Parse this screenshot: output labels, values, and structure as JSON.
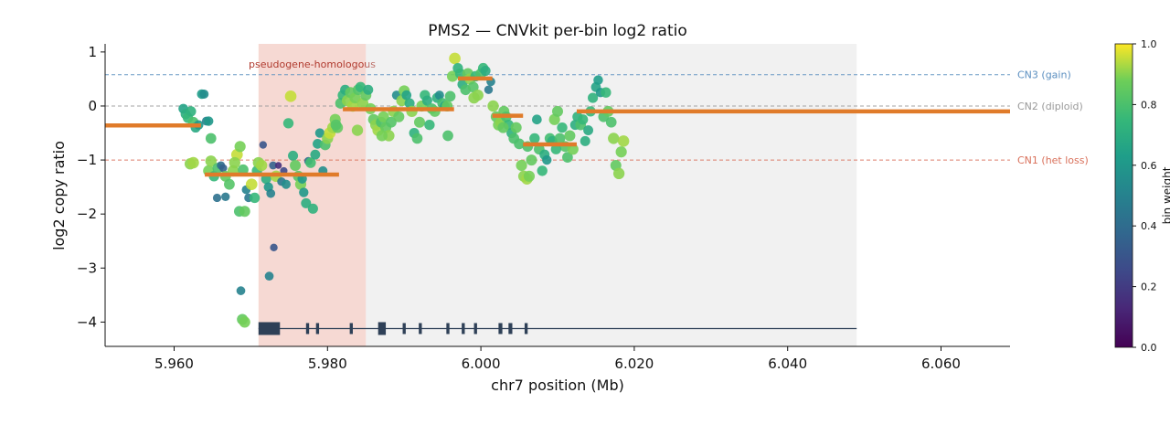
{
  "chart_data": {
    "type": "scatter",
    "title": "PMS2 — CNVkit per-bin log2 ratio",
    "xlabel": "chr7 position (Mb)",
    "ylabel": "log2 copy ratio",
    "xlim": [
      5.951,
      6.069
    ],
    "ylim": [
      -4.45,
      1.15
    ],
    "x_ticks": [
      5.96,
      5.98,
      6.0,
      6.02,
      6.04,
      6.06
    ],
    "x_tick_labels": [
      "5.960",
      "5.980",
      "6.000",
      "6.020",
      "6.040",
      "6.060"
    ],
    "y_ticks": [
      1,
      0,
      -1,
      -2,
      -3,
      -4
    ],
    "y_tick_labels": [
      "1",
      "0",
      "−1",
      "−2",
      "−3",
      "−4"
    ],
    "colormap": "viridis",
    "colorbar": {
      "label": "bin weight",
      "range": [
        0.0,
        1.0
      ],
      "ticks": [
        0.0,
        0.2,
        0.4,
        0.6,
        0.8,
        1.0
      ],
      "tick_labels": [
        "0.0",
        "0.2",
        "0.4",
        "0.6",
        "0.8",
        "1.0"
      ]
    },
    "reference_lines": [
      {
        "y": 0.58,
        "label": "CN3 (gain)",
        "color": "#5b8fc0"
      },
      {
        "y": 0.0,
        "label": "CN2 (diploid)",
        "color": "#999999"
      },
      {
        "y": -1.0,
        "label": "CN1 (het loss)",
        "color": "#d9705a"
      }
    ],
    "regions": [
      {
        "x0": 5.971,
        "x1": 5.985,
        "label": "pseudogene-homologous",
        "color": "#e8a090",
        "opacity": 0.4
      },
      {
        "x0": 5.985,
        "x1": 6.049,
        "label": "",
        "color": "#d8d8d8",
        "opacity": 0.35
      }
    ],
    "segments_color": "#e07b2a",
    "segments": [
      {
        "x0": 5.951,
        "x1": 5.9635,
        "y": -0.36
      },
      {
        "x0": 5.964,
        "x1": 5.9815,
        "y": -1.27
      },
      {
        "x0": 5.982,
        "x1": 5.9965,
        "y": -0.06
      },
      {
        "x0": 5.997,
        "x1": 6.0015,
        "y": 0.51
      },
      {
        "x0": 6.0015,
        "x1": 6.0055,
        "y": -0.18
      },
      {
        "x0": 6.0055,
        "x1": 6.0125,
        "y": -0.71
      },
      {
        "x0": 6.0125,
        "x1": 6.069,
        "y": -0.1
      }
    ],
    "gene_track": {
      "y": -4.12,
      "x0": 5.971,
      "x1": 6.049,
      "color": "#2e4057",
      "exons": [
        {
          "x0": 5.971,
          "x1": 5.9738
        },
        {
          "x0": 5.9772,
          "x1": 5.9776
        },
        {
          "x0": 5.9785,
          "x1": 5.9789
        },
        {
          "x0": 5.9829,
          "x1": 5.9833
        },
        {
          "x0": 5.9866,
          "x1": 5.9876
        },
        {
          "x0": 5.9898,
          "x1": 5.9902
        },
        {
          "x0": 5.9919,
          "x1": 5.9923
        },
        {
          "x0": 5.9955,
          "x1": 5.9959
        },
        {
          "x0": 5.9975,
          "x1": 5.9979
        },
        {
          "x0": 5.9991,
          "x1": 5.9995
        },
        {
          "x0": 6.0023,
          "x1": 6.0028
        },
        {
          "x0": 6.0036,
          "x1": 6.0041
        },
        {
          "x0": 6.0057,
          "x1": 6.0061
        }
      ]
    },
    "points": [
      [
        5.9612,
        -0.05,
        0.65
      ],
      [
        5.9615,
        -0.15,
        0.7
      ],
      [
        5.9618,
        -0.22,
        0.75
      ],
      [
        5.9622,
        -0.1,
        0.72
      ],
      [
        5.9625,
        -0.3,
        0.8
      ],
      [
        5.9628,
        -0.4,
        0.68
      ],
      [
        5.9632,
        -0.35,
        0.6
      ],
      [
        5.9636,
        0.22,
        0.62
      ],
      [
        5.9639,
        0.22,
        0.55
      ],
      [
        5.9642,
        -0.28,
        0.5
      ],
      [
        5.9645,
        -0.28,
        0.6
      ],
      [
        5.9648,
        -0.6,
        0.8
      ],
      [
        5.9621,
        -1.07,
        0.9
      ],
      [
        5.9625,
        -1.05,
        0.92
      ],
      [
        5.9645,
        -1.2,
        0.88
      ],
      [
        5.9648,
        -1.02,
        0.9
      ],
      [
        5.9652,
        -1.3,
        0.75
      ],
      [
        5.9657,
        -1.15,
        0.8
      ],
      [
        5.9661,
        -1.1,
        0.4
      ],
      [
        5.9664,
        -1.15,
        0.35
      ],
      [
        5.9667,
        -1.3,
        0.85
      ],
      [
        5.9672,
        -1.45,
        0.82
      ],
      [
        5.9677,
        -1.2,
        0.9
      ],
      [
        5.9682,
        -0.9,
        0.95
      ],
      [
        5.9686,
        -0.75,
        0.88
      ],
      [
        5.969,
        -1.18,
        0.8
      ],
      [
        5.9694,
        -1.55,
        0.5
      ],
      [
        5.9697,
        -1.7,
        0.45
      ],
      [
        5.9701,
        -1.45,
        0.95
      ],
      [
        5.9705,
        -1.7,
        0.75
      ],
      [
        5.9656,
        -1.7,
        0.42
      ],
      [
        5.9667,
        -1.68,
        0.45
      ],
      [
        5.9685,
        -1.95,
        0.8
      ],
      [
        5.9692,
        -1.95,
        0.85
      ],
      [
        5.9687,
        -3.42,
        0.5
      ],
      [
        5.9689,
        -3.95,
        0.85
      ],
      [
        5.9692,
        -4.0,
        0.88
      ],
      [
        5.9708,
        -1.2,
        0.75
      ],
      [
        5.971,
        -1.05,
        0.9
      ],
      [
        5.9714,
        -1.1,
        0.92
      ],
      [
        5.9716,
        -0.72,
        0.3
      ],
      [
        5.972,
        -1.35,
        0.7
      ],
      [
        5.9723,
        -1.5,
        0.6
      ],
      [
        5.9726,
        -1.62,
        0.5
      ],
      [
        5.9729,
        -1.1,
        0.35
      ],
      [
        5.9733,
        -1.3,
        0.92
      ],
      [
        5.9736,
        -1.1,
        0.15
      ],
      [
        5.974,
        -1.4,
        0.45
      ],
      [
        5.9743,
        -1.2,
        0.25
      ],
      [
        5.9746,
        -1.45,
        0.55
      ],
      [
        5.9749,
        -0.32,
        0.75
      ],
      [
        5.9752,
        0.18,
        0.95
      ],
      [
        5.9724,
        -3.15,
        0.5
      ],
      [
        5.973,
        -2.62,
        0.3
      ],
      [
        5.9755,
        -0.92,
        0.7
      ],
      [
        5.9758,
        -1.1,
        0.85
      ],
      [
        5.9762,
        -1.3,
        0.82
      ],
      [
        5.9765,
        -1.45,
        0.88
      ],
      [
        5.9769,
        -1.6,
        0.6
      ],
      [
        5.9772,
        -1.8,
        0.7
      ],
      [
        5.9775,
        -1.02,
        0.4
      ],
      [
        5.9778,
        -1.05,
        0.78
      ],
      [
        5.9781,
        -1.9,
        0.72
      ],
      [
        5.9784,
        -0.9,
        0.68
      ],
      [
        5.9787,
        -0.7,
        0.65
      ],
      [
        5.979,
        -0.5,
        0.6
      ],
      [
        5.9794,
        -1.2,
        0.55
      ],
      [
        5.9797,
        -0.72,
        0.8
      ],
      [
        5.98,
        -0.6,
        0.9
      ],
      [
        5.9803,
        -0.5,
        0.95
      ],
      [
        5.9807,
        -0.4,
        0.92
      ],
      [
        5.981,
        -0.25,
        0.88
      ],
      [
        5.9813,
        -0.4,
        0.85
      ],
      [
        5.9817,
        0.05,
        0.8
      ],
      [
        5.982,
        0.2,
        0.75
      ],
      [
        5.9823,
        0.3,
        0.7
      ],
      [
        5.9826,
        0.1,
        0.9
      ],
      [
        5.983,
        0.25,
        0.85
      ],
      [
        5.9833,
        0.0,
        0.92
      ],
      [
        5.9836,
        0.15,
        0.88
      ],
      [
        5.984,
        0.3,
        0.82
      ],
      [
        5.9843,
        0.35,
        0.75
      ],
      [
        5.9846,
        0.05,
        0.9
      ],
      [
        5.985,
        0.2,
        0.85
      ],
      [
        5.9853,
        0.3,
        0.7
      ],
      [
        5.9856,
        -0.05,
        0.88
      ],
      [
        5.986,
        -0.25,
        0.85
      ],
      [
        5.9863,
        -0.35,
        0.9
      ],
      [
        5.9866,
        -0.45,
        0.92
      ],
      [
        5.987,
        -0.3,
        0.8
      ],
      [
        5.9873,
        -0.2,
        0.88
      ],
      [
        5.9876,
        -0.4,
        0.85
      ],
      [
        5.988,
        -0.55,
        0.9
      ],
      [
        5.9883,
        -0.3,
        0.82
      ],
      [
        5.9886,
        -0.1,
        0.9
      ],
      [
        5.989,
        0.2,
        0.55
      ],
      [
        5.9893,
        -0.2,
        0.85
      ],
      [
        5.9897,
        0.1,
        0.9
      ],
      [
        5.99,
        0.28,
        0.88
      ],
      [
        5.9903,
        0.2,
        0.65
      ],
      [
        5.9907,
        0.05,
        0.7
      ],
      [
        5.991,
        -0.1,
        0.9
      ],
      [
        5.9913,
        -0.5,
        0.72
      ],
      [
        5.9917,
        -0.6,
        0.8
      ],
      [
        5.992,
        -0.3,
        0.85
      ],
      [
        5.9923,
        0.0,
        0.88
      ],
      [
        5.9927,
        0.2,
        0.75
      ],
      [
        5.993,
        0.1,
        0.7
      ],
      [
        5.9933,
        -0.35,
        0.75
      ],
      [
        5.9936,
        -0.05,
        0.8
      ],
      [
        5.994,
        -0.1,
        0.85
      ],
      [
        5.9943,
        0.15,
        0.72
      ],
      [
        5.9946,
        0.2,
        0.55
      ],
      [
        5.995,
        0.05,
        0.78
      ],
      [
        5.9953,
        0.0,
        0.65
      ],
      [
        5.9956,
        0.0,
        0.85
      ],
      [
        5.996,
        0.18,
        0.8
      ],
      [
        5.9963,
        0.55,
        0.88
      ],
      [
        5.9966,
        0.88,
        0.95
      ],
      [
        5.997,
        0.7,
        0.72
      ],
      [
        5.9973,
        0.6,
        0.75
      ],
      [
        5.9976,
        0.4,
        0.7
      ],
      [
        5.998,
        0.3,
        0.8
      ],
      [
        5.9983,
        0.6,
        0.85
      ],
      [
        5.9986,
        0.5,
        0.9
      ],
      [
        5.999,
        0.35,
        0.82
      ],
      [
        5.9993,
        0.55,
        0.75
      ],
      [
        5.9996,
        0.2,
        0.9
      ],
      [
        6.0,
        0.6,
        0.8
      ],
      [
        6.0003,
        0.7,
        0.75
      ],
      [
        6.0006,
        0.65,
        0.7
      ],
      [
        6.001,
        0.3,
        0.45
      ],
      [
        6.0013,
        0.45,
        0.5
      ],
      [
        6.0016,
        0.0,
        0.9
      ],
      [
        6.002,
        -0.2,
        0.85
      ],
      [
        6.0023,
        -0.35,
        0.88
      ],
      [
        6.0026,
        -0.3,
        0.9
      ],
      [
        6.003,
        -0.1,
        0.85
      ],
      [
        6.0033,
        -0.2,
        0.8
      ],
      [
        6.0036,
        -0.35,
        0.75
      ],
      [
        6.004,
        -0.5,
        0.72
      ],
      [
        6.0043,
        -0.6,
        0.8
      ],
      [
        6.0046,
        -0.4,
        0.85
      ],
      [
        6.005,
        -0.7,
        0.8
      ],
      [
        6.0053,
        -1.1,
        0.88
      ],
      [
        6.0056,
        -1.3,
        0.9
      ],
      [
        6.006,
        -1.35,
        0.92
      ],
      [
        6.0063,
        -1.3,
        0.88
      ],
      [
        6.0066,
        -1.0,
        0.85
      ],
      [
        6.007,
        -0.6,
        0.75
      ],
      [
        6.0073,
        -0.25,
        0.65
      ],
      [
        6.0076,
        -0.8,
        0.8
      ],
      [
        6.008,
        -1.2,
        0.75
      ],
      [
        6.0083,
        -0.9,
        0.7
      ],
      [
        6.0086,
        -1.0,
        0.6
      ],
      [
        6.009,
        -0.6,
        0.78
      ],
      [
        6.0093,
        -0.65,
        0.72
      ],
      [
        6.0096,
        -0.25,
        0.88
      ],
      [
        6.01,
        -0.1,
        0.85
      ],
      [
        6.0103,
        -0.6,
        0.8
      ],
      [
        6.0106,
        -0.4,
        0.75
      ],
      [
        6.011,
        -0.75,
        0.82
      ],
      [
        6.0113,
        -0.95,
        0.8
      ],
      [
        6.0116,
        -0.55,
        0.85
      ],
      [
        6.012,
        -0.8,
        0.88
      ],
      [
        6.0123,
        -0.35,
        0.7
      ],
      [
        6.0126,
        -0.2,
        0.72
      ],
      [
        6.013,
        -0.35,
        0.8
      ],
      [
        6.0133,
        -0.25,
        0.75
      ],
      [
        6.0136,
        -0.65,
        0.7
      ],
      [
        6.014,
        -0.45,
        0.68
      ],
      [
        6.0143,
        -0.1,
        0.75
      ],
      [
        6.0146,
        0.15,
        0.72
      ],
      [
        6.015,
        0.35,
        0.65
      ],
      [
        6.0153,
        0.48,
        0.62
      ],
      [
        6.0156,
        0.25,
        0.6
      ],
      [
        6.016,
        -0.2,
        0.8
      ],
      [
        6.0163,
        0.25,
        0.75
      ],
      [
        6.0166,
        -0.1,
        0.85
      ],
      [
        6.017,
        -0.3,
        0.8
      ],
      [
        6.0173,
        -0.6,
        0.9
      ],
      [
        6.0176,
        -1.1,
        0.85
      ],
      [
        6.018,
        -1.25,
        0.9
      ],
      [
        6.0183,
        -0.85,
        0.88
      ],
      [
        6.0186,
        -0.65,
        0.92
      ],
      [
        5.9957,
        -0.55,
        0.8
      ],
      [
        5.9991,
        0.15,
        0.9
      ],
      [
        6.0029,
        -0.4,
        0.85
      ],
      [
        6.0061,
        -0.75,
        0.8
      ],
      [
        6.0098,
        -0.8,
        0.75
      ],
      [
        5.9839,
        -0.45,
        0.9
      ],
      [
        5.9871,
        -0.55,
        0.88
      ],
      [
        5.9811,
        -0.35,
        0.82
      ],
      [
        5.9767,
        -1.35,
        0.6
      ],
      [
        5.9679,
        -1.05,
        0.9
      ]
    ]
  }
}
